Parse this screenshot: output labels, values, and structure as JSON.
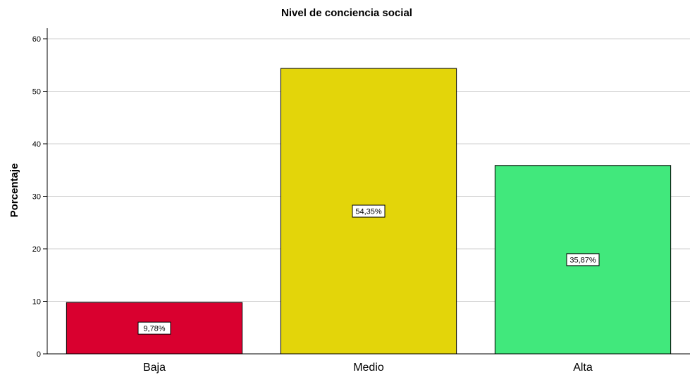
{
  "chart_data": {
    "type": "bar",
    "title": "Nivel de conciencia social",
    "xlabel": "",
    "ylabel": "Porcentaje",
    "ylim": [
      0,
      60
    ],
    "yticks": [
      0,
      10,
      20,
      30,
      40,
      50,
      60
    ],
    "ytick_labels": [
      "0",
      "10",
      "20",
      "30",
      "40",
      "50",
      "60"
    ],
    "grid": true,
    "categories": [
      "Baja",
      "Medio",
      "Alta"
    ],
    "values": [
      9.78,
      54.35,
      35.87
    ],
    "data_labels": [
      "9,78%",
      "54,35%",
      "35,87%"
    ],
    "colors": [
      "#d9002f",
      "#e3d50a",
      "#41e87c"
    ]
  }
}
